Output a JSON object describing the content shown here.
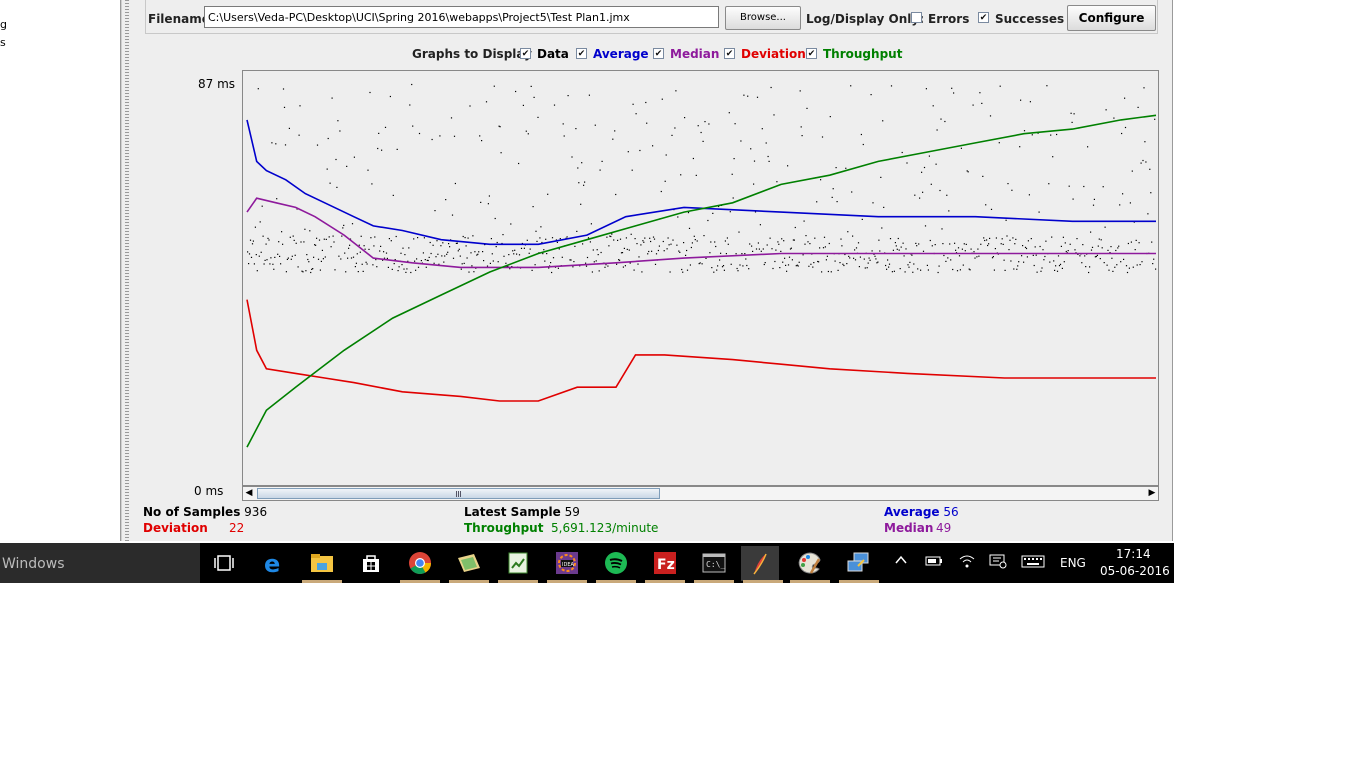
{
  "tree": {
    "fragments": [
      "g",
      "s"
    ]
  },
  "file_panel": {
    "filename_label": "Filename",
    "filename_value": "C:\\Users\\Veda-PC\\Desktop\\UCI\\Spring 2016\\webapps\\Project5\\Test Plan1.jmx",
    "browse_label": "Browse...",
    "log_display_label": "Log/Display Only:",
    "errors_label": "Errors",
    "errors_checked": false,
    "successes_label": "Successes",
    "successes_checked": true,
    "configure_label": "Configure"
  },
  "graphs_to_display": {
    "label": "Graphs to Display",
    "options": [
      {
        "label": "Data",
        "checked": true,
        "color": "#000000"
      },
      {
        "label": "Average",
        "checked": true,
        "color": "#0000cc"
      },
      {
        "label": "Median",
        "checked": true,
        "color": "#8e1a9c"
      },
      {
        "label": "Deviation",
        "checked": true,
        "color": "#e00000"
      },
      {
        "label": "Throughput",
        "checked": true,
        "color": "#008000"
      }
    ]
  },
  "chart_data": {
    "type": "line",
    "y_max_label": "87  ms",
    "y_min_label": "0  ms",
    "ylim": [
      0,
      87
    ],
    "n_samples": 936,
    "series": [
      {
        "name": "Average",
        "color": "#0000cc",
        "points": [
          [
            0,
            79
          ],
          [
            10,
            70
          ],
          [
            20,
            68
          ],
          [
            40,
            66
          ],
          [
            60,
            63
          ],
          [
            80,
            61
          ],
          [
            110,
            58
          ],
          [
            130,
            56
          ],
          [
            160,
            55
          ],
          [
            200,
            53
          ],
          [
            250,
            52
          ],
          [
            300,
            52
          ],
          [
            350,
            54
          ],
          [
            390,
            58
          ],
          [
            450,
            60
          ],
          [
            550,
            59
          ],
          [
            650,
            58
          ],
          [
            750,
            58
          ],
          [
            850,
            57
          ],
          [
            936,
            57
          ]
        ]
      },
      {
        "name": "Median",
        "color": "#8e1a9c",
        "points": [
          [
            0,
            59
          ],
          [
            10,
            62
          ],
          [
            30,
            61
          ],
          [
            50,
            60
          ],
          [
            70,
            58
          ],
          [
            100,
            54
          ],
          [
            130,
            49
          ],
          [
            170,
            48
          ],
          [
            220,
            47
          ],
          [
            300,
            47
          ],
          [
            380,
            48
          ],
          [
            450,
            49
          ],
          [
            550,
            50
          ],
          [
            650,
            50
          ],
          [
            750,
            50
          ],
          [
            850,
            50
          ],
          [
            936,
            50
          ]
        ]
      },
      {
        "name": "Deviation",
        "color": "#e00000",
        "points": [
          [
            0,
            40
          ],
          [
            10,
            29
          ],
          [
            20,
            25
          ],
          [
            50,
            24
          ],
          [
            80,
            23
          ],
          [
            110,
            22
          ],
          [
            160,
            20
          ],
          [
            220,
            19
          ],
          [
            260,
            18
          ],
          [
            300,
            18
          ],
          [
            340,
            21
          ],
          [
            380,
            21
          ],
          [
            400,
            28
          ],
          [
            430,
            28
          ],
          [
            500,
            27
          ],
          [
            550,
            26
          ],
          [
            600,
            25
          ],
          [
            680,
            24
          ],
          [
            780,
            23
          ],
          [
            880,
            23
          ],
          [
            936,
            23
          ]
        ]
      },
      {
        "name": "Throughput",
        "color": "#008000",
        "points": [
          [
            0,
            8
          ],
          [
            20,
            16
          ],
          [
            50,
            21
          ],
          [
            100,
            29
          ],
          [
            150,
            36
          ],
          [
            200,
            41
          ],
          [
            250,
            46
          ],
          [
            300,
            50
          ],
          [
            350,
            53
          ],
          [
            400,
            56
          ],
          [
            450,
            59
          ],
          [
            500,
            61
          ],
          [
            550,
            65
          ],
          [
            600,
            67
          ],
          [
            650,
            70
          ],
          [
            700,
            72
          ],
          [
            750,
            74
          ],
          [
            800,
            76
          ],
          [
            850,
            77
          ],
          [
            900,
            79
          ],
          [
            936,
            80
          ]
        ]
      }
    ],
    "data_scatter_y_range": [
      40,
      87
    ]
  },
  "stats": {
    "no_samples_label": "No of Samples",
    "no_samples_value": "936",
    "deviation_label": "Deviation",
    "deviation_value": "22",
    "latest_label": "Latest Sample",
    "latest_value": "59",
    "throughput_label": "Throughput",
    "throughput_value": "5,691.123/minute",
    "average_label": "Average",
    "average_value": "56",
    "median_label": "Median",
    "median_value": "49"
  },
  "taskbar": {
    "search_text": "Windows",
    "tray_language": "ENG",
    "time": "17:14",
    "date": "05-06-2016"
  }
}
